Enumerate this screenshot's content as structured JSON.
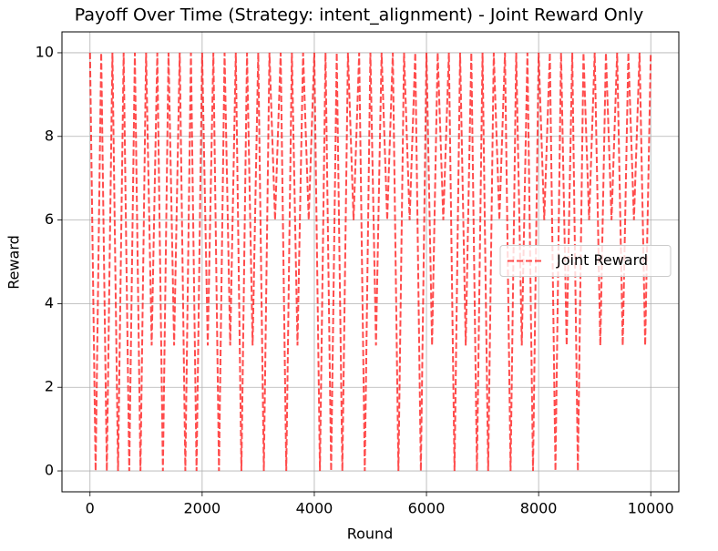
{
  "chart_data": {
    "type": "line",
    "title": "Payoff Over Time (Strategy: intent_alignment) - Joint Reward Only",
    "x_label": "Round",
    "y_label": "Reward",
    "x": [
      0,
      100,
      200,
      300,
      400,
      500,
      600,
      700,
      800,
      900,
      1000,
      1100,
      1200,
      1300,
      1400,
      1500,
      1600,
      1700,
      1800,
      1900,
      2000,
      2100,
      2200,
      2300,
      2400,
      2500,
      2600,
      2700,
      2800,
      2900,
      3000,
      3100,
      3200,
      3300,
      3400,
      3500,
      3600,
      3700,
      3800,
      3900,
      4000,
      4100,
      4200,
      4300,
      4400,
      4500,
      4600,
      4700,
      4800,
      4900,
      5000,
      5100,
      5200,
      5300,
      5400,
      5500,
      5600,
      5700,
      5800,
      5900,
      6000,
      6100,
      6200,
      6300,
      6400,
      6500,
      6600,
      6700,
      6800,
      6900,
      7000,
      7100,
      7200,
      7300,
      7400,
      7500,
      7600,
      7700,
      7800,
      7900,
      8000,
      8100,
      8200,
      8300,
      8400,
      8500,
      8600,
      8700,
      8800,
      8900,
      9000,
      9100,
      9200,
      9300,
      9400,
      9500,
      9600,
      9700,
      9800,
      9900,
      10000
    ],
    "series": [
      {
        "name": "Joint Reward",
        "color": "#ff0000",
        "linestyle": "dashed",
        "values": [
          10,
          0,
          10,
          0,
          10,
          0,
          10,
          0,
          10,
          0,
          10,
          3,
          10,
          0,
          10,
          3,
          10,
          0,
          10,
          0,
          10,
          3,
          10,
          0,
          10,
          3,
          10,
          0,
          10,
          3,
          10,
          0,
          10,
          6,
          10,
          0,
          10,
          3,
          10,
          6,
          10,
          0,
          10,
          0,
          10,
          0,
          10,
          6,
          10,
          0,
          10,
          3,
          10,
          6,
          10,
          0,
          10,
          6,
          10,
          0,
          10,
          3,
          10,
          6,
          10,
          0,
          10,
          3,
          10,
          0,
          10,
          0,
          10,
          6,
          10,
          0,
          10,
          3,
          10,
          0,
          10,
          6,
          10,
          0,
          10,
          3,
          10,
          0,
          10,
          6,
          10,
          3,
          10,
          6,
          10,
          3,
          10,
          6,
          10,
          3,
          10
        ]
      }
    ],
    "xlim": [
      -500,
      10500
    ],
    "ylim": [
      -0.5,
      10.5
    ],
    "xticks": [
      0,
      2000,
      4000,
      6000,
      8000,
      10000
    ],
    "yticks": [
      0,
      2,
      4,
      6,
      8,
      10
    ],
    "grid": true,
    "legend": "center right"
  }
}
